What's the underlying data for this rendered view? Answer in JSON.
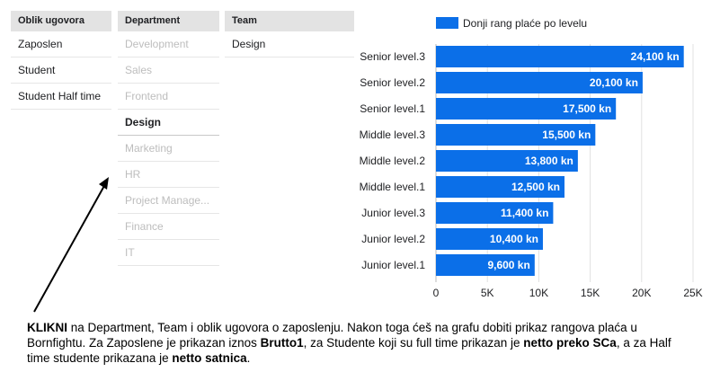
{
  "filters": {
    "oblik": {
      "header": "Oblik ugovora",
      "items": [
        "Zaposlen",
        "Student",
        "Student Half time"
      ]
    },
    "department": {
      "header": "Department",
      "items": [
        "Development",
        "Sales",
        "Frontend",
        "Design",
        "Marketing",
        "HR",
        "Project Manage...",
        "Finance",
        "IT"
      ],
      "selected": "Design"
    },
    "team": {
      "header": "Team",
      "items": [
        "Design"
      ]
    }
  },
  "chart_data": {
    "type": "bar",
    "orientation": "horizontal",
    "categories": [
      "Senior level.3",
      "Senior level.2",
      "Senior level.1",
      "Middle level.3",
      "Middle level.2",
      "Middle level.1",
      "Junior level.3",
      "Junior level.2",
      "Junior level.1"
    ],
    "series": [
      {
        "name": "Donji rang plaće po levelu",
        "values": [
          24100,
          20100,
          17500,
          15500,
          13800,
          12500,
          11400,
          10400,
          9600
        ],
        "labels": [
          "24,100 kn",
          "20,100 kn",
          "17,500 kn",
          "15,500 kn",
          "13,800 kn",
          "12,500 kn",
          "11,400 kn",
          "10,400 kn",
          "9,600 kn"
        ],
        "color": "#0b6fe8"
      }
    ],
    "xlim": [
      0,
      25000
    ],
    "xticks": [
      "0",
      "5K",
      "10K",
      "15K",
      "20K",
      "25K"
    ],
    "legend_position": "top",
    "grid": true
  },
  "instructions": {
    "p1_bold": "KLIKNI",
    "p1": " na Department, Team i oblik ugovora o zaposlenju. Nakon toga ćeš na grafu dobiti prikaz rangova plaća u Bornfightu. Za Zaposlene je prikazan iznos ",
    "b2": "Brutto1",
    "p2": ", za Studente koji su full time prikazan je ",
    "b3": "netto preko SCa",
    "p3": ", a za Half time studente prikazana je ",
    "b4": "netto satnica",
    "p4": "."
  },
  "colors": {
    "bar": "#0b6fe8",
    "grid": "#e0e0e0"
  }
}
